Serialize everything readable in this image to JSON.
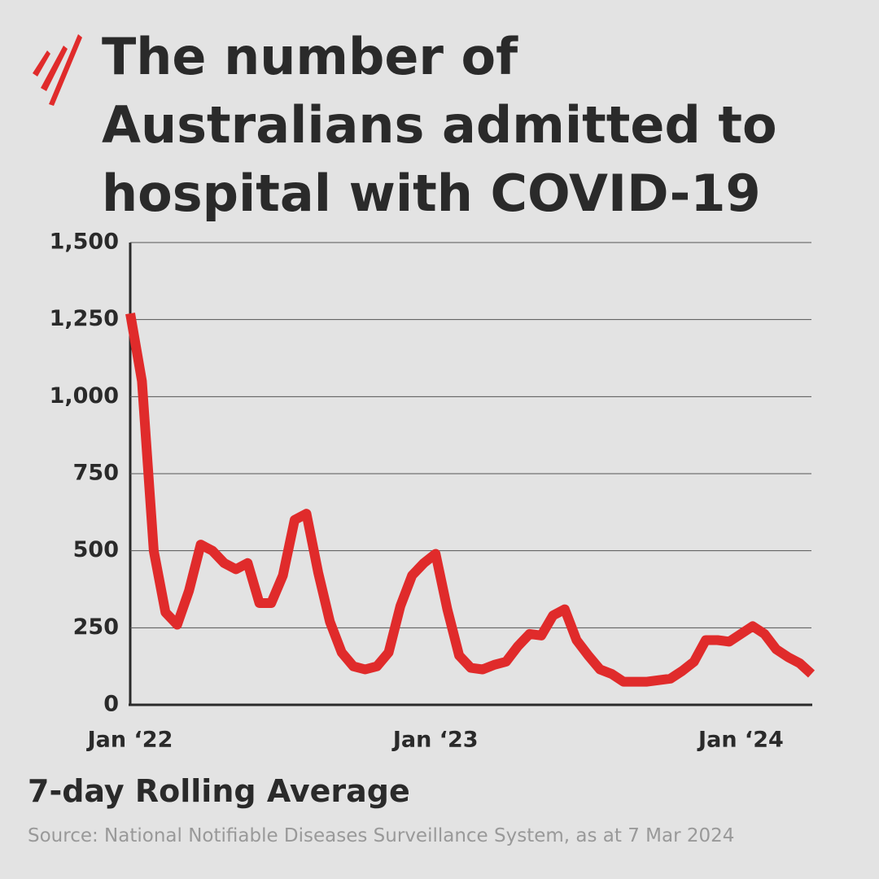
{
  "chart_data": {
    "type": "line",
    "title": "The number of Australians admitted to hospital with COVID-19",
    "subtitle": "7-day Rolling Average",
    "source": "Source: National Notifiable Diseases Surveillance System, as at 7 Mar 2024",
    "categories": [
      "Jan ‘22",
      null,
      null,
      null,
      null,
      null,
      null,
      null,
      null,
      null,
      null,
      null,
      null,
      null,
      null,
      null,
      null,
      null,
      null,
      null,
      null,
      null,
      null,
      null,
      null,
      null,
      "Jan ‘23",
      null,
      null,
      null,
      null,
      null,
      null,
      null,
      null,
      null,
      null,
      null,
      null,
      null,
      null,
      null,
      null,
      null,
      null,
      null,
      null,
      null,
      null,
      null,
      null,
      null,
      "Jan ‘24",
      null,
      null,
      null,
      null,
      null,
      null
    ],
    "series": [
      {
        "color": "#e02b2b",
        "values": [
          1270,
          1050,
          500,
          300,
          260,
          370,
          520,
          500,
          460,
          440,
          460,
          330,
          330,
          420,
          600,
          620,
          430,
          270,
          170,
          125,
          115,
          125,
          170,
          320,
          420,
          460,
          490,
          310,
          160,
          120,
          115,
          130,
          140,
          190,
          230,
          225,
          290,
          310,
          210,
          160,
          115,
          100,
          75,
          75,
          75,
          80,
          85,
          110,
          140,
          210,
          210,
          205,
          230,
          255,
          230,
          180,
          155,
          135,
          100
        ]
      }
    ],
    "ylim": [
      0,
      1500
    ],
    "yticks": [
      0,
      250,
      500,
      750,
      {
        "value": 1000,
        "label": "1,000"
      },
      {
        "value": 1250,
        "label": "1,250"
      },
      {
        "value": 1500,
        "label": "1,500"
      }
    ],
    "grid": true
  }
}
